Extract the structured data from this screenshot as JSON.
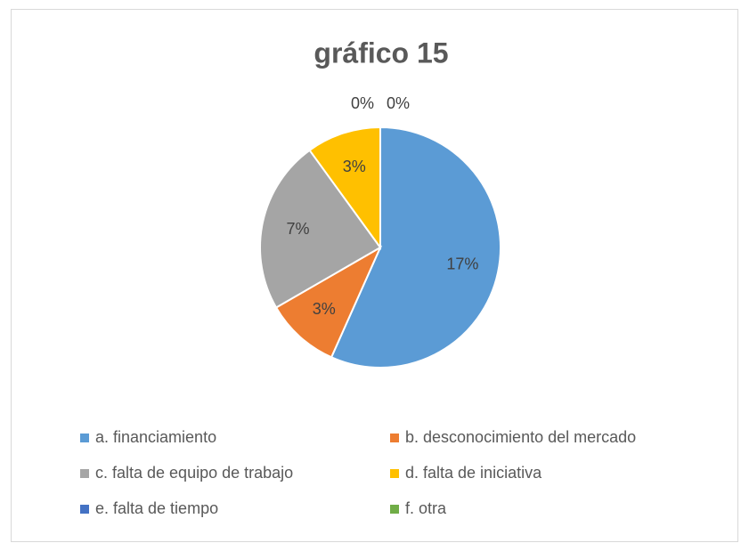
{
  "chart_data": {
    "type": "pie",
    "title": "gráfico 15",
    "categories": [
      "a. financiamiento",
      "b. desconocimiento del mercado",
      "c. falta de equipo de trabajo",
      "d. falta de iniciativa",
      "e. falta de tiempo",
      "f. otra"
    ],
    "values": [
      17,
      3,
      7,
      3,
      0,
      0
    ],
    "value_labels": [
      "17%",
      "3%",
      "7%",
      "3%",
      "0%",
      "0%"
    ],
    "colors": [
      "#5b9bd5",
      "#ed7d31",
      "#a5a5a5",
      "#ffc000",
      "#4472c4",
      "#70ad47"
    ],
    "legend": "bottom"
  }
}
